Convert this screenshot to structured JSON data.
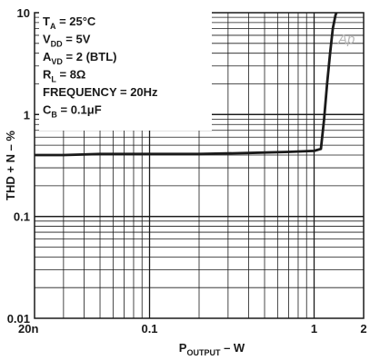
{
  "chart_data": {
    "type": "line",
    "x_scale": "log",
    "y_scale": "log",
    "xlim": [
      0.02,
      2
    ],
    "ylim": [
      0.01,
      10
    ],
    "grid": true,
    "xlabel_main": "P",
    "xlabel_sub": "OUTPUT",
    "xlabel_tail": " – W",
    "ylabel": "THD + N – %",
    "x_tick_labels": [
      "20n",
      "0.1",
      "1",
      "2"
    ],
    "y_tick_labels": [
      "10",
      "1",
      "0.1",
      "0.01"
    ],
    "conditions": [
      {
        "main": "T",
        "sub": "A",
        "tail": " = 25°C"
      },
      {
        "main": "V",
        "sub": "DD",
        "tail": " = 5V"
      },
      {
        "main": "A",
        "sub": "VD",
        "tail": " = 2 (BTL)"
      },
      {
        "main": "R",
        "sub": "L",
        "tail": " = 8Ω"
      },
      {
        "main": "FREQUENCY = 20Hz",
        "sub": "",
        "tail": ""
      },
      {
        "main": "C",
        "sub": "B",
        "tail": " = 0.1μF"
      }
    ],
    "watermark": "Ap",
    "series": [
      {
        "x": [
          0.02,
          0.03,
          0.05,
          0.1,
          0.2,
          0.4,
          0.7,
          1.0,
          1.1,
          1.15,
          1.2,
          1.25,
          1.3,
          1.35,
          1.4
        ],
        "y": [
          0.4,
          0.4,
          0.41,
          0.41,
          0.41,
          0.42,
          0.43,
          0.44,
          0.46,
          0.9,
          2.0,
          4.0,
          7.0,
          9.5,
          11
        ]
      }
    ]
  }
}
